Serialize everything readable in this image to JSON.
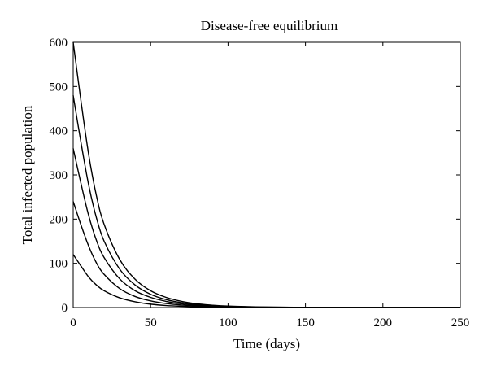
{
  "chart_data": {
    "type": "line",
    "title": "Disease-free equilibrium",
    "xlabel": "Time  (days)",
    "ylabel": "Total  infected population",
    "xlim": [
      0,
      250
    ],
    "ylim": [
      0,
      600
    ],
    "xticks": [
      0,
      50,
      100,
      150,
      200,
      250
    ],
    "yticks": [
      0,
      100,
      200,
      300,
      400,
      500,
      600
    ],
    "grid": false,
    "legend": "none",
    "line_color": "#000000",
    "x": [
      0,
      5,
      10,
      15,
      20,
      30,
      40,
      50,
      60,
      70,
      80,
      90,
      100,
      120,
      150,
      200,
      250
    ],
    "series": [
      {
        "values": [
          600,
          468,
          346,
          253,
          188,
          109,
          64,
          38,
          23,
          14,
          8.5,
          5.2,
          3.2,
          1.2,
          0.3,
          0.05,
          0
        ]
      },
      {
        "values": [
          480,
          374,
          277,
          203,
          150,
          87,
          51,
          30,
          18,
          11,
          6.8,
          4.2,
          2.6,
          1.0,
          0.25,
          0.04,
          0
        ]
      },
      {
        "values": [
          360,
          281,
          208,
          152,
          113,
          65,
          38,
          23,
          14,
          8.4,
          5.1,
          3.1,
          1.9,
          0.7,
          0.18,
          0.03,
          0
        ]
      },
      {
        "values": [
          240,
          187,
          139,
          101,
          75,
          43,
          25,
          15,
          9,
          5.6,
          3.4,
          2.1,
          1.3,
          0.5,
          0.12,
          0.02,
          0
        ]
      },
      {
        "values": [
          120,
          94,
          69,
          51,
          38,
          22,
          13,
          7.6,
          4.5,
          2.8,
          1.7,
          1.0,
          0.6,
          0.24,
          0.06,
          0.01,
          0
        ]
      }
    ]
  }
}
